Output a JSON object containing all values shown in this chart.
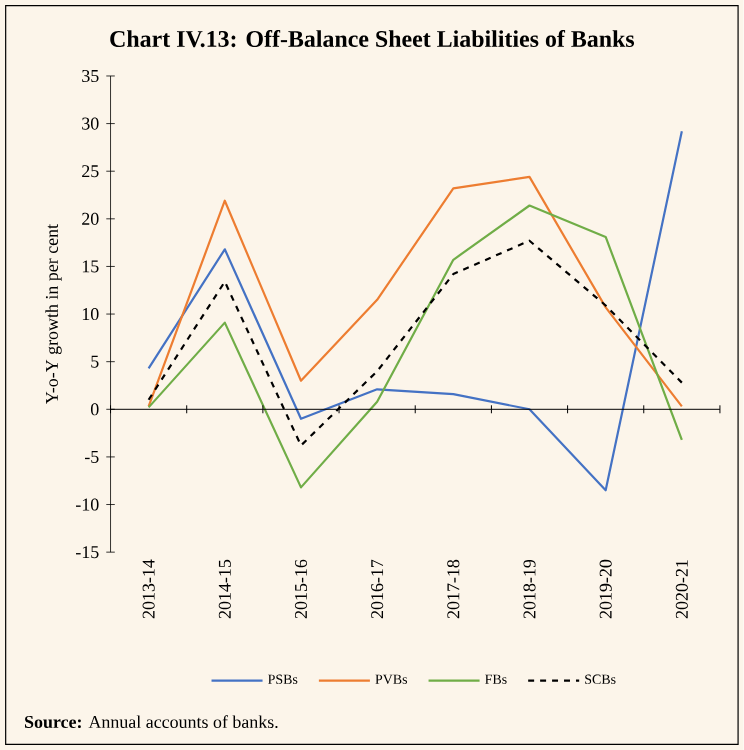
{
  "chart_data": {
    "type": "line",
    "title": "Chart IV.13: Off-Balance Sheet Liabilities of Banks",
    "ylabel": "Y-o-Y growth in per cent",
    "categories": [
      "2013-14",
      "2014-15",
      "2015-16",
      "2016-17",
      "2017-18",
      "2018-19",
      "2019-20",
      "2020-21"
    ],
    "series": [
      {
        "name": "PSBs",
        "color": "#4472c4",
        "values": [
          4.3,
          16.8,
          -1.0,
          2.1,
          1.6,
          0.0,
          -8.5,
          29.2
        ]
      },
      {
        "name": "PVBs",
        "color": "#ed7d31",
        "values": [
          0.3,
          21.9,
          3.0,
          11.5,
          23.2,
          24.4,
          10.7,
          0.3
        ]
      },
      {
        "name": "FBs",
        "color": "#70ad47",
        "values": [
          0.2,
          9.1,
          -8.2,
          0.8,
          15.7,
          21.4,
          18.1,
          -3.2
        ]
      },
      {
        "name": "SCBs",
        "color": "#000000",
        "line_style": "dashed",
        "values": [
          1.0,
          13.4,
          -3.8,
          4.0,
          14.2,
          17.7,
          10.9,
          2.8
        ]
      }
    ],
    "ylim": [
      -15,
      35
    ],
    "yticks": [
      -15,
      -10,
      -5,
      0,
      5,
      10,
      15,
      20,
      25,
      30,
      35
    ],
    "legend": "bottom",
    "annotations": [
      "**Source:** Annual accounts of banks."
    ]
  }
}
